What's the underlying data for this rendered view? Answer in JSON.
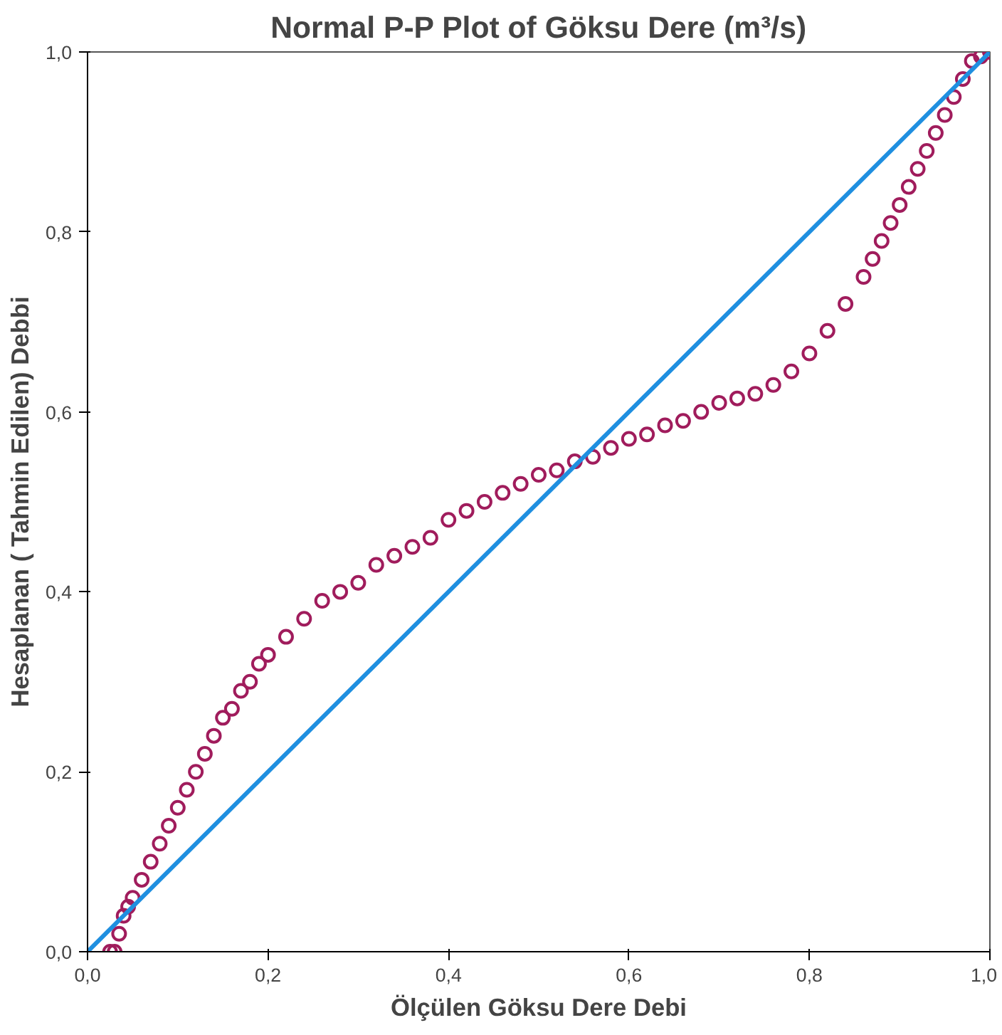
{
  "chart_data": {
    "type": "scatter",
    "title": "Normal P-P Plot of Göksu Dere (m³/s)",
    "xlabel": "Ölçülen Göksu Dere Debi",
    "ylabel": "Hesaplanan ( Tahmin Edilen) Debbi",
    "xlim": [
      0,
      1
    ],
    "ylim": [
      0,
      1
    ],
    "xticks": [
      {
        "value": 0,
        "label": "0,0"
      },
      {
        "value": 0.2,
        "label": "0,2"
      },
      {
        "value": 0.4,
        "label": "0,4"
      },
      {
        "value": 0.6,
        "label": "0,6"
      },
      {
        "value": 0.8,
        "label": "0,8"
      },
      {
        "value": 1,
        "label": "1,0"
      }
    ],
    "yticks": [
      {
        "value": 0,
        "label": "0,0"
      },
      {
        "value": 0.2,
        "label": "0,2"
      },
      {
        "value": 0.4,
        "label": "0,4"
      },
      {
        "value": 0.6,
        "label": "0,6"
      },
      {
        "value": 0.8,
        "label": "0,8"
      },
      {
        "value": 1,
        "label": "1,0"
      }
    ],
    "grid": false,
    "series": [
      {
        "color": "#a01c5c",
        "marker": "circle",
        "x": [
          0.025,
          0.03,
          0.035,
          0.04,
          0.045,
          0.05,
          0.06,
          0.07,
          0.08,
          0.09,
          0.1,
          0.11,
          0.12,
          0.13,
          0.14,
          0.15,
          0.16,
          0.17,
          0.18,
          0.19,
          0.2,
          0.22,
          0.24,
          0.26,
          0.28,
          0.3,
          0.32,
          0.34,
          0.36,
          0.38,
          0.4,
          0.42,
          0.44,
          0.46,
          0.48,
          0.5,
          0.52,
          0.54,
          0.56,
          0.58,
          0.6,
          0.62,
          0.64,
          0.66,
          0.68,
          0.7,
          0.72,
          0.74,
          0.76,
          0.78,
          0.8,
          0.82,
          0.84,
          0.86,
          0.87,
          0.88,
          0.89,
          0.9,
          0.91,
          0.92,
          0.93,
          0.94,
          0.95,
          0.96,
          0.97,
          0.98,
          0.99,
          1.0
        ],
        "values": [
          0.0,
          0.0,
          0.02,
          0.04,
          0.05,
          0.06,
          0.08,
          0.1,
          0.12,
          0.14,
          0.16,
          0.18,
          0.2,
          0.22,
          0.24,
          0.26,
          0.27,
          0.29,
          0.3,
          0.32,
          0.33,
          0.35,
          0.37,
          0.39,
          0.4,
          0.41,
          0.43,
          0.44,
          0.45,
          0.46,
          0.48,
          0.49,
          0.5,
          0.51,
          0.52,
          0.53,
          0.535,
          0.545,
          0.55,
          0.56,
          0.57,
          0.575,
          0.585,
          0.59,
          0.6,
          0.61,
          0.615,
          0.62,
          0.63,
          0.645,
          0.665,
          0.69,
          0.72,
          0.75,
          0.77,
          0.79,
          0.81,
          0.83,
          0.85,
          0.87,
          0.89,
          0.91,
          0.93,
          0.95,
          0.97,
          0.99,
          0.995,
          1.0
        ]
      },
      {
        "type": "line",
        "color": "#1f8fe0",
        "marker": "none",
        "x": [
          0,
          1
        ],
        "values": [
          0,
          1
        ]
      }
    ]
  }
}
